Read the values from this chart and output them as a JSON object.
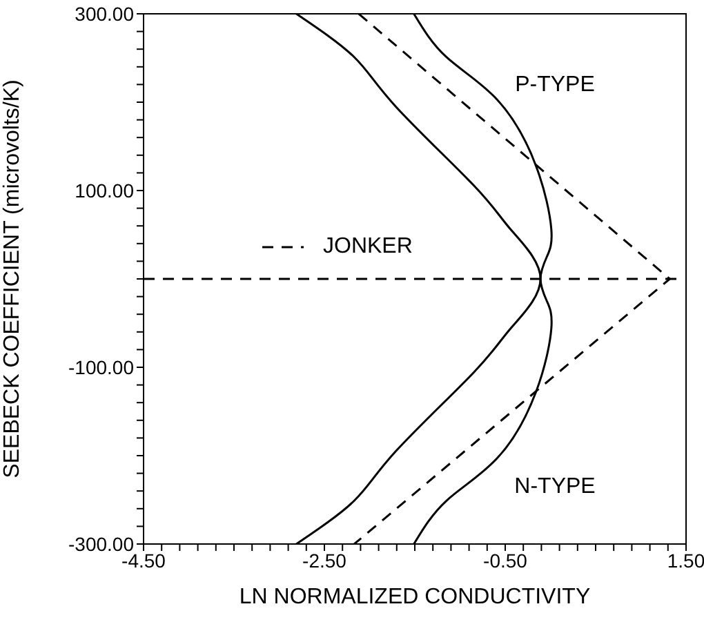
{
  "chart_data": {
    "type": "line",
    "xlabel": "LN  NORMALIZED  CONDUCTIVITY",
    "ylabel": "SEEBECK  COEFFICIENT  (microvolts/K)",
    "xlim": [
      -4.5,
      1.5
    ],
    "ylim": [
      -300,
      300
    ],
    "xticks": [
      {
        "value": -4.5,
        "label": "-4.50"
      },
      {
        "value": -4.3,
        "label": null
      },
      {
        "value": -4.1,
        "label": null
      },
      {
        "value": -3.9,
        "label": null
      },
      {
        "value": -3.7,
        "label": null
      },
      {
        "value": -3.5,
        "label": null
      },
      {
        "value": -3.3,
        "label": null
      },
      {
        "value": -3.1,
        "label": null
      },
      {
        "value": -2.9,
        "label": null
      },
      {
        "value": -2.7,
        "label": null
      },
      {
        "value": -2.5,
        "label": "-2.50"
      },
      {
        "value": -2.3,
        "label": null
      },
      {
        "value": -2.1,
        "label": null
      },
      {
        "value": -1.9,
        "label": null
      },
      {
        "value": -1.7,
        "label": null
      },
      {
        "value": -1.5,
        "label": null
      },
      {
        "value": -1.3,
        "label": null
      },
      {
        "value": -1.1,
        "label": null
      },
      {
        "value": -0.9,
        "label": null
      },
      {
        "value": -0.7,
        "label": null
      },
      {
        "value": -0.5,
        "label": "-0.50"
      },
      {
        "value": -0.3,
        "label": null
      },
      {
        "value": -0.1,
        "label": null
      },
      {
        "value": 0.1,
        "label": null
      },
      {
        "value": 0.3,
        "label": null
      },
      {
        "value": 0.5,
        "label": null
      },
      {
        "value": 0.7,
        "label": null
      },
      {
        "value": 0.9,
        "label": null
      },
      {
        "value": 1.1,
        "label": null
      },
      {
        "value": 1.3,
        "label": null
      },
      {
        "value": 1.5,
        "label": "1.50"
      }
    ],
    "yticks": [
      {
        "value": -300,
        "label": "-300.00"
      },
      {
        "value": -280,
        "label": null
      },
      {
        "value": -260,
        "label": null
      },
      {
        "value": -240,
        "label": null
      },
      {
        "value": -220,
        "label": null
      },
      {
        "value": -200,
        "label": null
      },
      {
        "value": -180,
        "label": null
      },
      {
        "value": -160,
        "label": null
      },
      {
        "value": -140,
        "label": null
      },
      {
        "value": -120,
        "label": null
      },
      {
        "value": -100,
        "label": "-100.00"
      },
      {
        "value": -80,
        "label": null
      },
      {
        "value": -60,
        "label": null
      },
      {
        "value": -40,
        "label": null
      },
      {
        "value": -20,
        "label": null
      },
      {
        "value": 0,
        "label": null
      },
      {
        "value": 20,
        "label": null
      },
      {
        "value": 40,
        "label": null
      },
      {
        "value": 60,
        "label": null
      },
      {
        "value": 80,
        "label": null
      },
      {
        "value": 100,
        "label": "100.00"
      },
      {
        "value": 120,
        "label": null
      },
      {
        "value": 140,
        "label": null
      },
      {
        "value": 160,
        "label": null
      },
      {
        "value": 180,
        "label": null
      },
      {
        "value": 200,
        "label": null
      },
      {
        "value": 220,
        "label": null
      },
      {
        "value": 240,
        "label": null
      },
      {
        "value": 260,
        "label": null
      },
      {
        "value": 280,
        "label": null
      },
      {
        "value": 300,
        "label": "300.00"
      }
    ],
    "series": [
      {
        "color": "#000000",
        "line_style": "solid",
        "x": [
          -2.81,
          -2.17,
          -1.71,
          -0.85,
          -0.44,
          -0.11,
          -0.44,
          -0.85,
          -1.71,
          -2.17,
          -2.81
        ],
        "values": [
          300,
          251,
          195,
          106,
          56,
          0,
          -56,
          -106,
          -195,
          -251,
          -300
        ]
      },
      {
        "color": "#000000",
        "line_style": "solid",
        "x": [
          -1.51,
          -1.15,
          -0.59,
          -0.16,
          0.01,
          -0.04,
          -0.11,
          -0.04,
          0.01,
          -0.16,
          -0.59,
          -1.15,
          -1.51
        ],
        "values": [
          300,
          251,
          203,
          128,
          56,
          25,
          0,
          -25,
          -56,
          -128,
          -203,
          -251,
          -300
        ]
      },
      {
        "name": "JONKER",
        "color": "#000000",
        "line_style": "dashed",
        "x": [
          -2.12,
          1.32,
          -2.17
        ],
        "values": [
          300,
          0,
          -300
        ]
      },
      {
        "color": "#000000",
        "line_style": "dashed",
        "x": [
          -4.5,
          1.42
        ],
        "values": [
          0,
          0
        ]
      }
    ],
    "annotations": [
      "P-TYPE",
      "N-TYPE"
    ],
    "legend": "center",
    "marker": "none",
    "grid": false
  }
}
